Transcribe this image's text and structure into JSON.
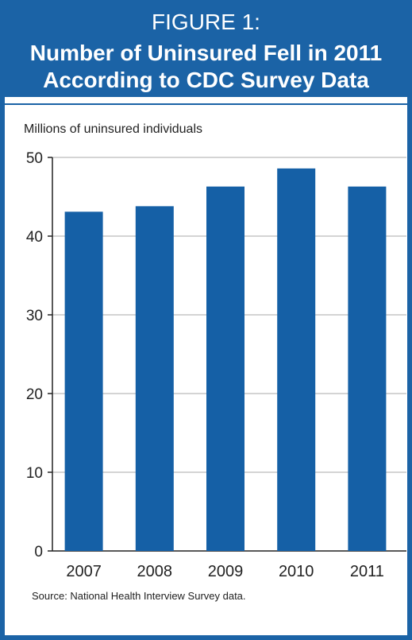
{
  "figure": {
    "label": "FIGURE 1:",
    "title": "Number of Uninsured Fell in 2011 According to CDC Survey Data",
    "title_lines": [
      "Number of Uninsured Fell in 2011",
      "According to CDC Survey Data"
    ],
    "source": "Source:  National Health Interview Survey data."
  },
  "colors": {
    "brand": "#1b63a6",
    "bar": "#1560a6",
    "grid": "#aaaaaa"
  },
  "chart_data": {
    "type": "bar",
    "title": "Number of Uninsured Fell in 2011 According to CDC Survey Data",
    "xlabel": "",
    "ylabel": "Millions of uninsured individuals",
    "categories": [
      "2007",
      "2008",
      "2009",
      "2010",
      "2011"
    ],
    "values": [
      43.1,
      43.8,
      46.3,
      48.6,
      46.3
    ],
    "ylim": [
      0,
      50
    ],
    "yticks": [
      0,
      10,
      20,
      30,
      40,
      50
    ],
    "grid": true,
    "legend": "none"
  }
}
